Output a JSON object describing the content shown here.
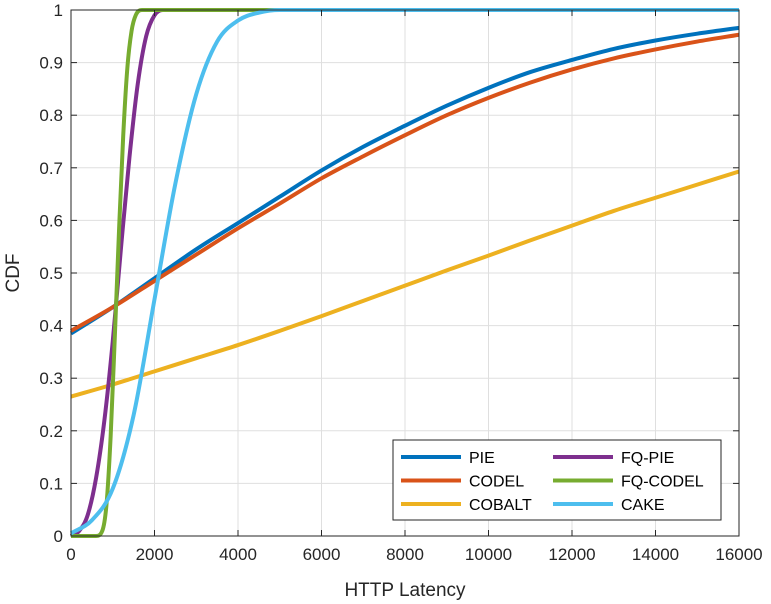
{
  "chart_data": {
    "type": "line",
    "title": "",
    "xlabel": "HTTP Latency",
    "ylabel": "CDF",
    "xlim": [
      0,
      16000
    ],
    "ylim": [
      0,
      1
    ],
    "xticks": [
      0,
      2000,
      4000,
      6000,
      8000,
      10000,
      12000,
      14000,
      16000
    ],
    "xtick_labels": [
      "0",
      "2000",
      "4000",
      "6000",
      "8000",
      "10000",
      "12000",
      "14000",
      "16000"
    ],
    "yticks": [
      0,
      0.1,
      0.2,
      0.3,
      0.4,
      0.5,
      0.6,
      0.7,
      0.8,
      0.9,
      1
    ],
    "ytick_labels": [
      "0",
      "0.1",
      "0.2",
      "0.3",
      "0.4",
      "0.5",
      "0.6",
      "0.7",
      "0.8",
      "0.9",
      "1"
    ],
    "grid": true,
    "legend_position": "bottom-right",
    "legend_columns": 2,
    "series": [
      {
        "name": "PIE",
        "color": "#0072BD",
        "x": [
          0,
          1000,
          2000,
          3000,
          4000,
          5000,
          6000,
          7000,
          8000,
          9000,
          10000,
          11000,
          12000,
          13000,
          14000,
          15000,
          16000
        ],
        "y": [
          0.385,
          0.435,
          0.49,
          0.545,
          0.595,
          0.645,
          0.695,
          0.74,
          0.78,
          0.818,
          0.852,
          0.882,
          0.905,
          0.926,
          0.942,
          0.955,
          0.966
        ]
      },
      {
        "name": "CODEL",
        "color": "#D95319",
        "x": [
          0,
          1000,
          2000,
          3000,
          4000,
          5000,
          6000,
          7000,
          8000,
          9000,
          10000,
          11000,
          12000,
          13000,
          14000,
          15000,
          16000
        ],
        "y": [
          0.39,
          0.435,
          0.485,
          0.535,
          0.585,
          0.632,
          0.68,
          0.722,
          0.762,
          0.8,
          0.833,
          0.862,
          0.887,
          0.908,
          0.925,
          0.94,
          0.953
        ]
      },
      {
        "name": "COBALT",
        "color": "#EDB120",
        "x": [
          0,
          1000,
          2000,
          3000,
          4000,
          5000,
          6000,
          7000,
          8000,
          9000,
          10000,
          11000,
          12000,
          13000,
          14000,
          15000,
          16000
        ],
        "y": [
          0.265,
          0.288,
          0.313,
          0.338,
          0.363,
          0.39,
          0.418,
          0.447,
          0.476,
          0.505,
          0.533,
          0.562,
          0.59,
          0.618,
          0.643,
          0.668,
          0.693
        ]
      },
      {
        "name": "FQ-PIE",
        "color": "#7E2F8E",
        "x": [
          0,
          200,
          400,
          600,
          800,
          1000,
          1200,
          1400,
          1600,
          1800,
          2000,
          2200,
          2400,
          16000
        ],
        "y": [
          0.0,
          0.01,
          0.04,
          0.11,
          0.22,
          0.37,
          0.55,
          0.72,
          0.86,
          0.95,
          0.99,
          1.0,
          1.0,
          1.0
        ]
      },
      {
        "name": "FQ-CODEL",
        "color": "#77AC30",
        "x": [
          0,
          600,
          750,
          850,
          950,
          1050,
          1150,
          1250,
          1350,
          1450,
          1550,
          1700,
          16000
        ],
        "y": [
          0.0,
          0.0,
          0.01,
          0.06,
          0.19,
          0.38,
          0.58,
          0.76,
          0.89,
          0.96,
          0.99,
          1.0,
          1.0
        ]
      },
      {
        "name": "CAKE",
        "color": "#4DBEEE",
        "x": [
          0,
          500,
          1000,
          1500,
          2000,
          2500,
          3000,
          3500,
          4000,
          4500,
          5000,
          16000
        ],
        "y": [
          0.005,
          0.03,
          0.09,
          0.23,
          0.45,
          0.67,
          0.84,
          0.94,
          0.98,
          0.995,
          1.0,
          1.0
        ]
      }
    ]
  }
}
